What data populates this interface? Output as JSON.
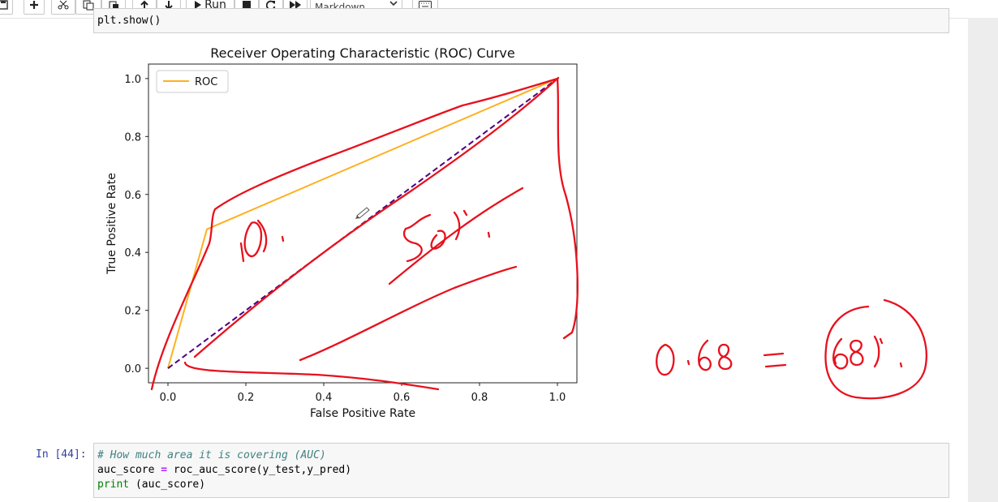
{
  "toolbar": {
    "run_label": "Run",
    "cell_type": "Markdown",
    "icons": [
      "save-icon",
      "add-icon",
      "cut-icon",
      "copy-icon",
      "paste-icon",
      "move-up-icon",
      "move-down-icon",
      "run-icon",
      "stop-icon",
      "restart-icon",
      "fast-forward-icon",
      "keyboard-icon"
    ]
  },
  "previous_cell": {
    "code": "plt.show()"
  },
  "chart_data": {
    "type": "line",
    "title": "Receiver Operating Characteristic (ROC) Curve",
    "xlabel": "False Positive Rate",
    "ylabel": "True Positive Rate",
    "xlim": [
      -0.05,
      1.05
    ],
    "ylim": [
      -0.05,
      1.05
    ],
    "x_ticks": [
      "0.0",
      "0.2",
      "0.4",
      "0.6",
      "0.8",
      "1.0"
    ],
    "y_ticks": [
      "0.0",
      "0.2",
      "0.4",
      "0.6",
      "0.8",
      "1.0"
    ],
    "legend_position": "top-left",
    "grid": false,
    "series": [
      {
        "name": "ROC",
        "color": "#ffb020",
        "style": "solid",
        "x": [
          0.0,
          0.1,
          1.0
        ],
        "y": [
          0.0,
          0.48,
          1.0
        ]
      },
      {
        "color": "#4b0082",
        "style": "dashed",
        "x": [
          0.0,
          1.0
        ],
        "y": [
          0.0,
          1.0
        ]
      }
    ]
  },
  "annotations": {
    "handwritten": [
      "10%",
      "50%",
      "0.68 = 68%"
    ],
    "color": "#e8101c"
  },
  "code_cell": {
    "prompt": "In [44]:",
    "lines": [
      "# How much area it is covering (AUC)",
      "auc_score = roc_auc_score(y_test,y_pred)",
      "print (auc_score)"
    ]
  }
}
